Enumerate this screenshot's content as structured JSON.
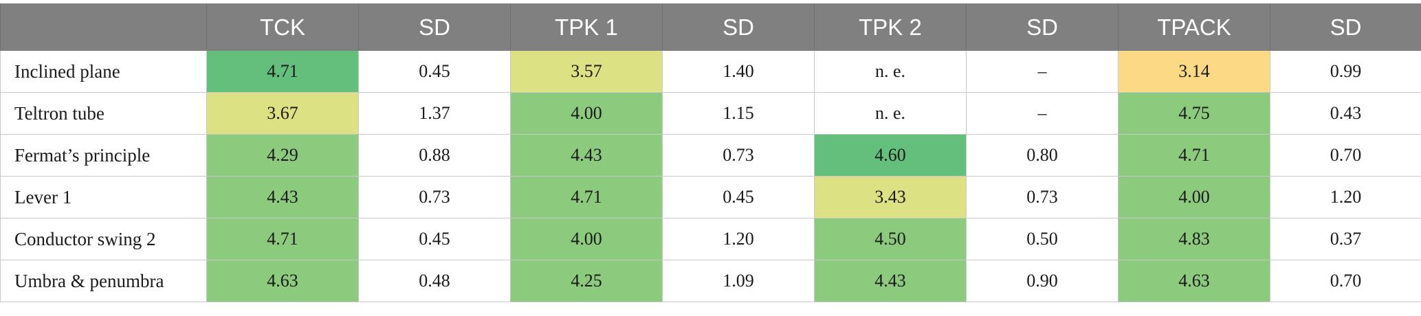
{
  "table": {
    "headers": [
      "",
      "TCK",
      "SD",
      "TPK 1",
      "SD",
      "TPK 2",
      "SD",
      "TPACK",
      "SD"
    ],
    "rows": [
      {
        "label": "Inclined plane",
        "cells": [
          {
            "value": "4.71",
            "fill": "#64bf7c"
          },
          {
            "value": "0.45",
            "fill": "#ffffff"
          },
          {
            "value": "3.57",
            "fill": "#dce283"
          },
          {
            "value": "1.40",
            "fill": "#ffffff"
          },
          {
            "value": "n. e.",
            "fill": "#ffffff"
          },
          {
            "value": "–",
            "fill": "#ffffff"
          },
          {
            "value": "3.14",
            "fill": "#fbd985"
          },
          {
            "value": "0.99",
            "fill": "#ffffff"
          }
        ]
      },
      {
        "label": "Teltron tube",
        "cells": [
          {
            "value": "3.67",
            "fill": "#dce283"
          },
          {
            "value": "1.37",
            "fill": "#ffffff"
          },
          {
            "value": "4.00",
            "fill": "#8ccb7e"
          },
          {
            "value": "1.15",
            "fill": "#ffffff"
          },
          {
            "value": "n. e.",
            "fill": "#ffffff"
          },
          {
            "value": "–",
            "fill": "#ffffff"
          },
          {
            "value": "4.75",
            "fill": "#8ccb7e"
          },
          {
            "value": "0.43",
            "fill": "#ffffff"
          }
        ]
      },
      {
        "label": "Fermat’s principle",
        "cells": [
          {
            "value": "4.29",
            "fill": "#8ccb7e"
          },
          {
            "value": "0.88",
            "fill": "#ffffff"
          },
          {
            "value": "4.43",
            "fill": "#8ccb7e"
          },
          {
            "value": "0.73",
            "fill": "#ffffff"
          },
          {
            "value": "4.60",
            "fill": "#64bf7c"
          },
          {
            "value": "0.80",
            "fill": "#ffffff"
          },
          {
            "value": "4.71",
            "fill": "#8ccb7e"
          },
          {
            "value": "0.70",
            "fill": "#ffffff"
          }
        ]
      },
      {
        "label": "Lever 1",
        "cells": [
          {
            "value": "4.43",
            "fill": "#8ccb7e"
          },
          {
            "value": "0.73",
            "fill": "#ffffff"
          },
          {
            "value": "4.71",
            "fill": "#8ccb7e"
          },
          {
            "value": "0.45",
            "fill": "#ffffff"
          },
          {
            "value": "3.43",
            "fill": "#dce283"
          },
          {
            "value": "0.73",
            "fill": "#ffffff"
          },
          {
            "value": "4.00",
            "fill": "#8ccb7e"
          },
          {
            "value": "1.20",
            "fill": "#ffffff"
          }
        ]
      },
      {
        "label": "Conductor swing 2",
        "cells": [
          {
            "value": "4.71",
            "fill": "#8ccb7e"
          },
          {
            "value": "0.45",
            "fill": "#ffffff"
          },
          {
            "value": "4.00",
            "fill": "#8ccb7e"
          },
          {
            "value": "1.20",
            "fill": "#ffffff"
          },
          {
            "value": "4.50",
            "fill": "#8ccb7e"
          },
          {
            "value": "0.50",
            "fill": "#ffffff"
          },
          {
            "value": "4.83",
            "fill": "#8ccb7e"
          },
          {
            "value": "0.37",
            "fill": "#ffffff"
          }
        ]
      },
      {
        "label": "Umbra & penumbra",
        "cells": [
          {
            "value": "4.63",
            "fill": "#8ccb7e"
          },
          {
            "value": "0.48",
            "fill": "#ffffff"
          },
          {
            "value": "4.25",
            "fill": "#8ccb7e"
          },
          {
            "value": "1.09",
            "fill": "#ffffff"
          },
          {
            "value": "4.43",
            "fill": "#8ccb7e"
          },
          {
            "value": "0.90",
            "fill": "#ffffff"
          },
          {
            "value": "4.63",
            "fill": "#8ccb7e"
          },
          {
            "value": "0.70",
            "fill": "#ffffff"
          }
        ]
      }
    ]
  }
}
